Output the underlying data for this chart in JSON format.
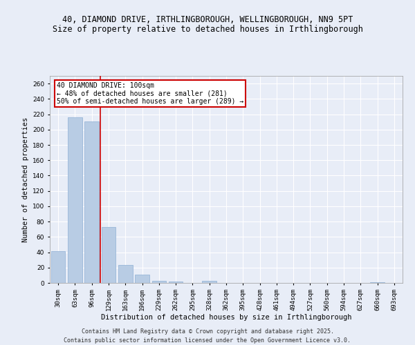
{
  "title_line1": "40, DIAMOND DRIVE, IRTHLINGBOROUGH, WELLINGBOROUGH, NN9 5PT",
  "title_line2": "Size of property relative to detached houses in Irthlingborough",
  "xlabel": "Distribution of detached houses by size in Irthlingborough",
  "ylabel": "Number of detached properties",
  "categories": [
    "30sqm",
    "63sqm",
    "96sqm",
    "129sqm",
    "163sqm",
    "196sqm",
    "229sqm",
    "262sqm",
    "295sqm",
    "328sqm",
    "362sqm",
    "395sqm",
    "428sqm",
    "461sqm",
    "494sqm",
    "527sqm",
    "560sqm",
    "594sqm",
    "627sqm",
    "660sqm",
    "693sqm"
  ],
  "values": [
    41,
    216,
    211,
    73,
    23,
    11,
    3,
    2,
    0,
    3,
    0,
    0,
    0,
    0,
    0,
    0,
    0,
    0,
    0,
    1,
    0
  ],
  "bar_color": "#b8cce4",
  "bar_edge_color": "#8dafd4",
  "vline_color": "#cc0000",
  "vline_index": 2.5,
  "annotation_text": "40 DIAMOND DRIVE: 100sqm\n← 48% of detached houses are smaller (281)\n50% of semi-detached houses are larger (289) →",
  "annotation_box_facecolor": "#ffffff",
  "annotation_box_edgecolor": "#cc0000",
  "ylim": [
    0,
    270
  ],
  "yticks": [
    0,
    20,
    40,
    60,
    80,
    100,
    120,
    140,
    160,
    180,
    200,
    220,
    240,
    260
  ],
  "footer_line1": "Contains HM Land Registry data © Crown copyright and database right 2025.",
  "footer_line2": "Contains public sector information licensed under the Open Government Licence v3.0.",
  "bg_color": "#e8edf7",
  "plot_bg_color": "#e8edf7",
  "grid_color": "#ffffff",
  "title_fontsize": 8.5,
  "subtitle_fontsize": 8.5,
  "tick_fontsize": 6.5,
  "label_fontsize": 7.5,
  "annotation_fontsize": 7,
  "footer_fontsize": 6
}
